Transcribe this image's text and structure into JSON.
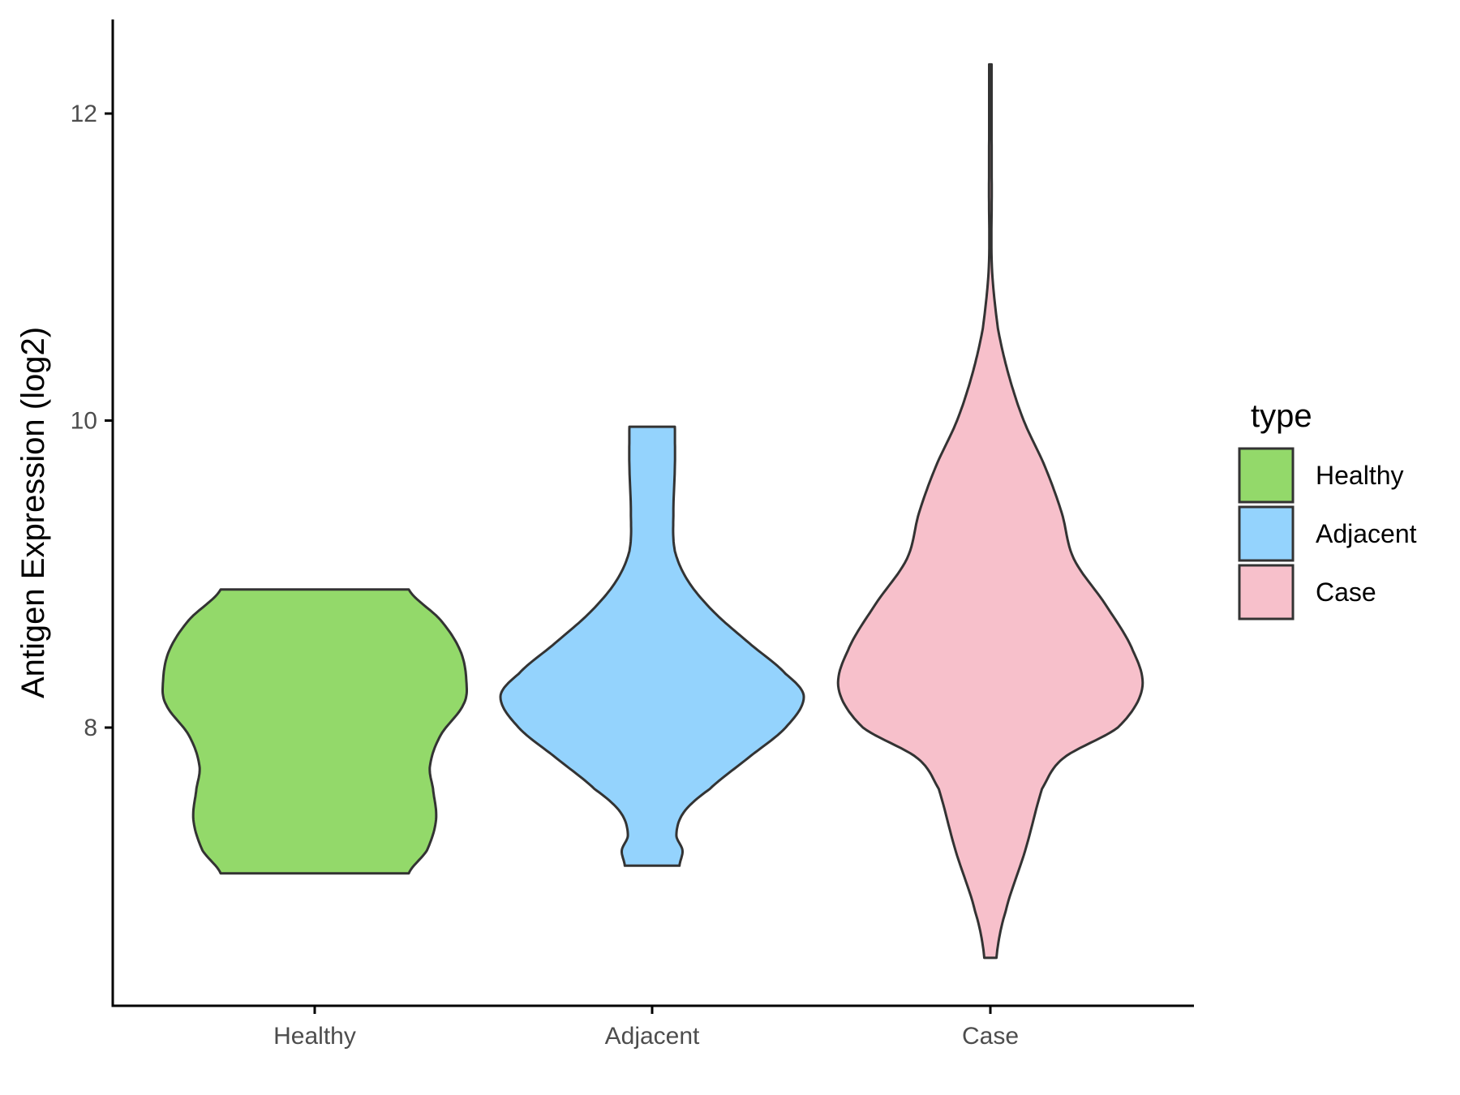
{
  "chart_data": {
    "type": "violin",
    "categories": [
      "Healthy",
      "Adjacent",
      "Case"
    ],
    "ylabel": "Antigen Expression (log2)",
    "xlabel": "",
    "ylim": [
      6.2,
      12.6
    ],
    "yticks": [
      8,
      10,
      12
    ],
    "ytick_labels": [
      "8",
      "10",
      "12"
    ],
    "grid": false,
    "legend": {
      "title": "type",
      "position": "right",
      "items": [
        {
          "label": "Healthy",
          "color": "#93D96A"
        },
        {
          "label": "Adjacent",
          "color": "#94D3FD"
        },
        {
          "label": "Case",
          "color": "#F7C0CB"
        }
      ]
    },
    "series": [
      {
        "category": "Healthy",
        "color": "#93D96A",
        "min": 7.05,
        "max": 8.9,
        "density_profile": [
          [
            7.05,
            0.62
          ],
          [
            7.2,
            0.74
          ],
          [
            7.4,
            0.8
          ],
          [
            7.6,
            0.78
          ],
          [
            7.75,
            0.76
          ],
          [
            7.95,
            0.83
          ],
          [
            8.15,
            0.98
          ],
          [
            8.3,
            1.0
          ],
          [
            8.5,
            0.96
          ],
          [
            8.7,
            0.83
          ],
          [
            8.9,
            0.62
          ]
        ]
      },
      {
        "category": "Adjacent",
        "color": "#94D3FD",
        "min": 7.1,
        "max": 9.96,
        "density_profile": [
          [
            7.1,
            0.18
          ],
          [
            7.2,
            0.2
          ],
          [
            7.3,
            0.16
          ],
          [
            7.45,
            0.21
          ],
          [
            7.6,
            0.38
          ],
          [
            7.8,
            0.63
          ],
          [
            8.0,
            0.88
          ],
          [
            8.2,
            1.0
          ],
          [
            8.35,
            0.88
          ],
          [
            8.55,
            0.64
          ],
          [
            8.75,
            0.41
          ],
          [
            8.95,
            0.24
          ],
          [
            9.15,
            0.15
          ],
          [
            9.4,
            0.14
          ],
          [
            9.7,
            0.15
          ],
          [
            9.96,
            0.15
          ]
        ]
      },
      {
        "category": "Case",
        "color": "#F7C0CB",
        "min": 6.5,
        "max": 12.32,
        "density_profile": [
          [
            6.5,
            0.04
          ],
          [
            6.8,
            0.1
          ],
          [
            7.2,
            0.23
          ],
          [
            7.6,
            0.34
          ],
          [
            7.8,
            0.48
          ],
          [
            8.0,
            0.84
          ],
          [
            8.25,
            1.0
          ],
          [
            8.5,
            0.94
          ],
          [
            8.8,
            0.76
          ],
          [
            9.1,
            0.55
          ],
          [
            9.4,
            0.47
          ],
          [
            9.7,
            0.36
          ],
          [
            10.0,
            0.22
          ],
          [
            10.3,
            0.12
          ],
          [
            10.6,
            0.05
          ],
          [
            11.0,
            0.01
          ],
          [
            11.5,
            0.009
          ],
          [
            12.0,
            0.008
          ],
          [
            12.32,
            0.008
          ]
        ]
      }
    ]
  }
}
